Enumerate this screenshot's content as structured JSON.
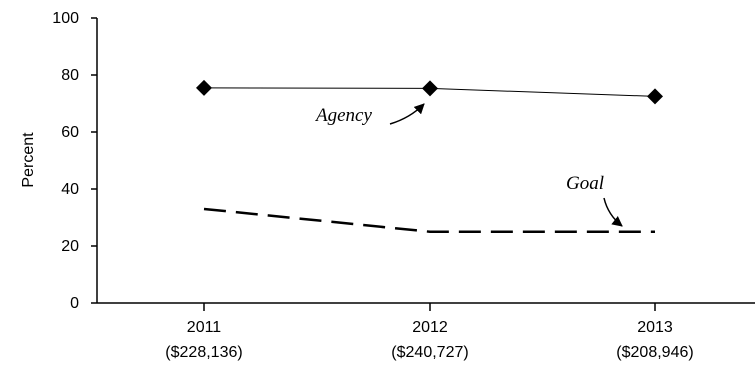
{
  "chart_data": {
    "type": "line",
    "ylabel": "Percent",
    "xlabel": "",
    "ylim": [
      0,
      100
    ],
    "yticks": [
      0,
      20,
      40,
      60,
      80,
      100
    ],
    "categories": [
      "2011",
      "2012",
      "2013"
    ],
    "category_sublabels": [
      "($228,136)",
      "($240,727)",
      "($208,946)"
    ],
    "grid": false,
    "legend": "none",
    "series": [
      {
        "name": "Agency",
        "values": [
          75.5,
          75.3,
          72.5
        ],
        "style": "solid",
        "marker": "diamond",
        "color": "#000000"
      },
      {
        "name": "Goal",
        "values": [
          33,
          25,
          25
        ],
        "style": "dashed",
        "marker": "none",
        "color": "#000000"
      }
    ]
  }
}
